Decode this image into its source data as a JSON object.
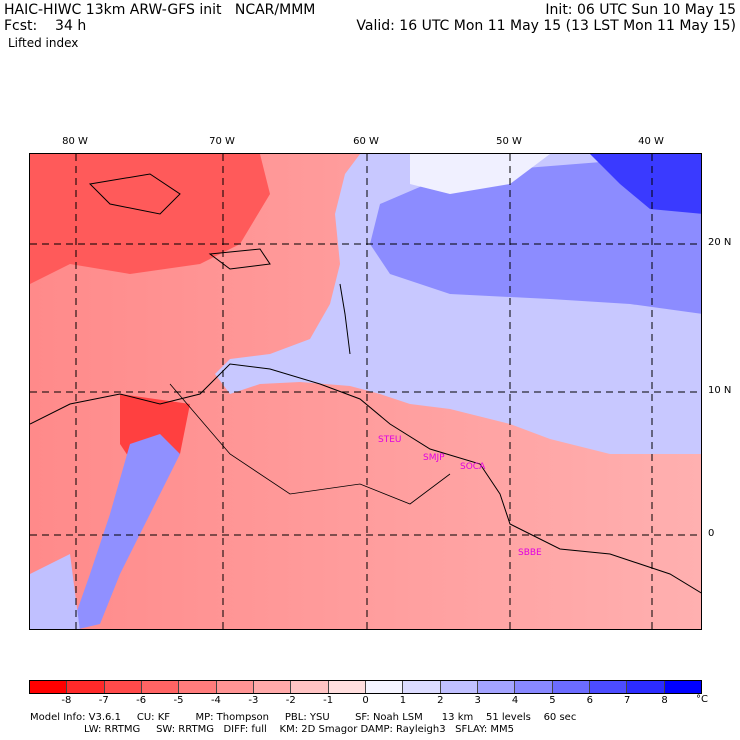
{
  "header": {
    "title": "HAIC-HIWC 13km ARW-GFS init   NCAR/MMM",
    "init": "Init: 06 UTC Sun 10 May 15",
    "fcst_label": "Fcst:    34 h",
    "valid": "Valid: 16 UTC Mon 11 May 15 (13 LST Mon 11 May 15)",
    "field": "Lifted index"
  },
  "axes": {
    "longitudes": [
      "80 W",
      "70 W",
      "60 W",
      "50 W",
      "40 W"
    ],
    "latitudes": [
      "20 N",
      "10 N",
      "0"
    ]
  },
  "stations": [
    "STEU",
    "SMJP",
    "SOCA",
    "SBBE"
  ],
  "colorbar": {
    "ticks": [
      "-8",
      "-7",
      "-6",
      "-5",
      "-4",
      "-3",
      "-2",
      "-1",
      "0",
      "1",
      "2",
      "3",
      "4",
      "5",
      "6",
      "7",
      "8"
    ],
    "unit": "°C",
    "colors": [
      "#ff0000",
      "#ff2a2a",
      "#ff4a4a",
      "#ff6464",
      "#ff7c7c",
      "#ff9494",
      "#ffaaaa",
      "#ffc4c4",
      "#ffdede",
      "#f4f4ff",
      "#dcdcff",
      "#c0c0ff",
      "#a4a4ff",
      "#8888ff",
      "#6c6cff",
      "#4c4cff",
      "#2c2cff",
      "#0000ff"
    ]
  },
  "model_info": {
    "line1": "Model Info: V3.6.1     CU: KF        MP: Thompson     PBL: YSU        SF: Noah LSM      13 km    51 levels    60 sec",
    "line2": "                 LW: RRTMG     SW: RRTMG   DIFF: full    KM: 2D Smagor DAMP: Rayleigh3   SFLAY: MM5"
  }
}
